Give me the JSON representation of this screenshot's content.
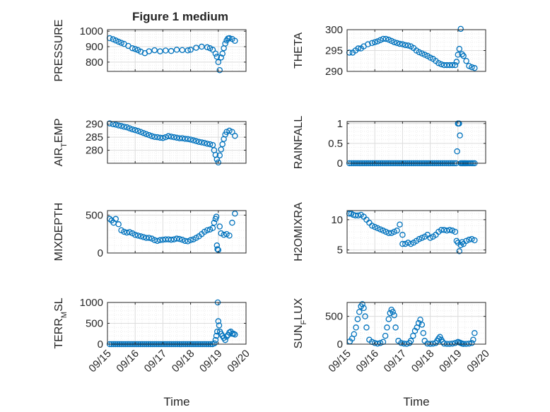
{
  "figure_title": "Figure 1 medium",
  "colors": {
    "marker": "#0072BD",
    "axes": "#262626",
    "grid": "#dcdcdc",
    "grid_minor": "#ececec"
  },
  "time_ticks": [
    "09/15",
    "09/16",
    "09/17",
    "09/18",
    "09/19",
    "09/20"
  ],
  "chart_data": [
    {
      "type": "scatter",
      "ylabel": "PRESSURE",
      "col": 0,
      "row": 0,
      "ylim": [
        740,
        1010
      ],
      "yticks": [
        800,
        900,
        1000
      ],
      "xlim": [
        0,
        5
      ],
      "xticks": [
        0,
        1,
        2,
        3,
        4,
        5
      ],
      "xtick_labels_shown": false,
      "xlabel": "",
      "title": "Figure 1 medium",
      "series": [
        {
          "x": [
            0.08,
            0.2,
            0.3,
            0.4,
            0.5,
            0.6,
            0.75,
            0.9,
            1.0,
            1.1,
            1.2,
            1.35,
            1.5,
            1.7,
            1.9,
            2.1,
            2.3,
            2.5,
            2.7,
            2.9,
            3.0,
            3.2,
            3.4,
            3.6,
            3.7,
            3.8,
            3.9,
            3.95,
            4.0,
            4.05,
            4.1,
            4.15,
            4.2,
            4.25,
            4.3,
            4.35,
            4.4,
            4.5,
            4.6
          ],
          "y": [
            955,
            948,
            940,
            932,
            925,
            918,
            905,
            890,
            885,
            878,
            868,
            858,
            870,
            877,
            870,
            875,
            872,
            880,
            878,
            876,
            880,
            893,
            900,
            896,
            890,
            880,
            855,
            835,
            800,
            748,
            830,
            855,
            890,
            920,
            940,
            953,
            955,
            950,
            938
          ]
        }
      ]
    },
    {
      "type": "scatter",
      "ylabel": "THETA",
      "col": 1,
      "row": 0,
      "ylim": [
        290,
        300
      ],
      "yticks": [
        290,
        295,
        300
      ],
      "xlim": [
        0,
        5
      ],
      "xticks": [
        0,
        1,
        2,
        3,
        4,
        5
      ],
      "xtick_labels_shown": false,
      "xlabel": "",
      "series": [
        {
          "x": [
            0.08,
            0.2,
            0.3,
            0.4,
            0.5,
            0.6,
            0.75,
            0.9,
            1.0,
            1.1,
            1.2,
            1.3,
            1.4,
            1.5,
            1.6,
            1.7,
            1.8,
            1.9,
            2.0,
            2.1,
            2.2,
            2.3,
            2.4,
            2.5,
            2.6,
            2.7,
            2.8,
            2.9,
            3.0,
            3.1,
            3.2,
            3.3,
            3.4,
            3.5,
            3.6,
            3.7,
            3.8,
            3.9,
            3.95,
            4.0,
            4.05,
            4.1,
            4.15,
            4.2,
            4.3,
            4.4,
            4.5,
            4.6
          ],
          "y": [
            294.5,
            294.5,
            295,
            295.5,
            295.5,
            296,
            296.5,
            296.8,
            297,
            297.2,
            297.5,
            297.8,
            297.8,
            297.6,
            297.3,
            297,
            296.8,
            296.6,
            296.5,
            296.3,
            296.2,
            296,
            295.6,
            295,
            294.6,
            294.3,
            294.0,
            293.7,
            293.3,
            293,
            292.5,
            292,
            291.7,
            291.5,
            291.5,
            291.5,
            291.5,
            291.5,
            292.3,
            294,
            295.4,
            300.2,
            294.1,
            293.7,
            292.5,
            291.3,
            291,
            290.8
          ]
        }
      ]
    },
    {
      "type": "scatter",
      "ylabel": "AIR_TEMP",
      "col": 0,
      "row": 1,
      "ylim": [
        275,
        291
      ],
      "yticks": [
        280,
        285,
        290
      ],
      "xlim": [
        0,
        5
      ],
      "xticks": [
        0,
        1,
        2,
        3,
        4,
        5
      ],
      "xtick_labels_shown": false,
      "xlabel": "",
      "series": [
        {
          "x": [
            0.08,
            0.2,
            0.3,
            0.4,
            0.5,
            0.6,
            0.7,
            0.8,
            0.9,
            1.0,
            1.1,
            1.2,
            1.3,
            1.4,
            1.5,
            1.6,
            1.7,
            1.8,
            1.9,
            2.0,
            2.1,
            2.2,
            2.3,
            2.4,
            2.5,
            2.6,
            2.7,
            2.8,
            2.9,
            3.0,
            3.1,
            3.2,
            3.3,
            3.4,
            3.5,
            3.6,
            3.7,
            3.8,
            3.85,
            3.9,
            3.95,
            4.0,
            4.05,
            4.1,
            4.15,
            4.2,
            4.25,
            4.3,
            4.4,
            4.5,
            4.6
          ],
          "y": [
            290.3,
            290,
            289.8,
            289.5,
            289.3,
            289,
            288.8,
            288.4,
            288,
            287.7,
            287.4,
            287,
            286.6,
            286.2,
            285.8,
            285.4,
            285.1,
            285,
            284.8,
            284.7,
            285,
            285.4,
            285.2,
            285,
            284.8,
            284.6,
            284.6,
            284.4,
            284.3,
            284.1,
            283.8,
            283.5,
            283.2,
            283,
            282.8,
            282.5,
            282.3,
            282,
            280,
            278.2,
            276.5,
            275.3,
            278,
            280.3,
            282.3,
            284.3,
            286,
            287,
            287.5,
            287,
            285.5
          ]
        }
      ]
    },
    {
      "type": "scatter",
      "ylabel": "RAINFALL",
      "col": 1,
      "row": 1,
      "ylim": [
        0,
        1.05
      ],
      "yticks": [
        0,
        0.5,
        1
      ],
      "xlim": [
        0,
        5
      ],
      "xticks": [
        0,
        1,
        2,
        3,
        4,
        5
      ],
      "xtick_labels_shown": false,
      "xlabel": "",
      "series": [
        {
          "x": [
            0.08,
            0.15,
            0.22,
            0.29,
            0.36,
            0.43,
            0.5,
            0.57,
            0.64,
            0.71,
            0.78,
            0.85,
            0.92,
            0.99,
            1.06,
            1.13,
            1.2,
            1.27,
            1.34,
            1.41,
            1.48,
            1.55,
            1.62,
            1.69,
            1.76,
            1.83,
            1.9,
            1.97,
            2.04,
            2.11,
            2.18,
            2.25,
            2.32,
            2.39,
            2.46,
            2.53,
            2.6,
            2.67,
            2.74,
            2.81,
            2.88,
            2.95,
            3.02,
            3.09,
            3.16,
            3.23,
            3.3,
            3.37,
            3.44,
            3.51,
            3.58,
            3.65,
            3.72,
            3.79,
            3.86,
            3.93,
            3.97,
            4.0,
            4.02,
            4.04,
            4.07,
            4.1,
            4.14,
            4.18,
            4.22,
            4.26,
            4.3,
            4.36,
            4.42,
            4.48,
            4.54,
            4.6
          ],
          "y": [
            0,
            0,
            0,
            0,
            0,
            0,
            0,
            0,
            0,
            0,
            0,
            0,
            0,
            0,
            0,
            0,
            0,
            0,
            0,
            0,
            0,
            0,
            0,
            0,
            0,
            0,
            0,
            0,
            0,
            0,
            0,
            0,
            0,
            0,
            0,
            0,
            0,
            0,
            0,
            0,
            0,
            0,
            0,
            0,
            0,
            0,
            0,
            0,
            0,
            0,
            0,
            0,
            0,
            0,
            0,
            0,
            0.3,
            1.0,
            1.0,
            1.0,
            0.7,
            0,
            0,
            0,
            0,
            0,
            0,
            0,
            0,
            0,
            0,
            0
          ]
        }
      ]
    },
    {
      "type": "scatter",
      "ylabel": "MIXDEPTH",
      "col": 0,
      "row": 2,
      "ylim": [
        0,
        560
      ],
      "yticks": [
        0,
        500
      ],
      "xlim": [
        0,
        5
      ],
      "xticks": [
        0,
        1,
        2,
        3,
        4,
        5
      ],
      "xtick_labels_shown": false,
      "xlabel": "",
      "series": [
        {
          "x": [
            0.08,
            0.15,
            0.22,
            0.3,
            0.4,
            0.5,
            0.6,
            0.7,
            0.8,
            0.9,
            1.0,
            1.1,
            1.2,
            1.3,
            1.4,
            1.5,
            1.6,
            1.7,
            1.8,
            1.9,
            2.0,
            2.1,
            2.2,
            2.3,
            2.4,
            2.5,
            2.6,
            2.7,
            2.8,
            2.9,
            3.0,
            3.1,
            3.2,
            3.3,
            3.4,
            3.5,
            3.6,
            3.7,
            3.8,
            3.85,
            3.9,
            3.93,
            3.95,
            3.97,
            4.0,
            4.05,
            4.1,
            4.2,
            4.3,
            4.4,
            4.5,
            4.6
          ],
          "y": [
            450,
            430,
            400,
            450,
            380,
            300,
            280,
            270,
            275,
            260,
            240,
            230,
            220,
            210,
            200,
            200,
            190,
            170,
            160,
            170,
            175,
            180,
            180,
            175,
            180,
            190,
            185,
            175,
            160,
            155,
            170,
            180,
            200,
            220,
            250,
            280,
            300,
            310,
            330,
            400,
            450,
            480,
            100,
            50,
            40,
            350,
            260,
            240,
            250,
            230,
            400,
            520
          ]
        }
      ]
    },
    {
      "type": "scatter",
      "ylabel": "H2OMIXRA",
      "col": 1,
      "row": 2,
      "ylim": [
        4.5,
        11.5
      ],
      "yticks": [
        5,
        10
      ],
      "xlim": [
        0,
        5
      ],
      "xticks": [
        0,
        1,
        2,
        3,
        4,
        5
      ],
      "xtick_labels_shown": false,
      "xlabel": "",
      "series": [
        {
          "x": [
            0.08,
            0.15,
            0.22,
            0.3,
            0.4,
            0.5,
            0.6,
            0.7,
            0.8,
            0.9,
            1.0,
            1.1,
            1.2,
            1.3,
            1.4,
            1.5,
            1.6,
            1.7,
            1.8,
            1.9,
            2.0,
            2.0,
            2.1,
            2.2,
            2.3,
            2.4,
            2.5,
            2.6,
            2.7,
            2.8,
            2.9,
            3.0,
            3.1,
            3.2,
            3.3,
            3.4,
            3.5,
            3.6,
            3.7,
            3.8,
            3.9,
            3.95,
            4.0,
            4.05,
            4.1,
            4.15,
            4.2,
            4.3,
            4.4,
            4.5,
            4.6
          ],
          "y": [
            11,
            11,
            10.8,
            10.7,
            10.7,
            10.8,
            10.5,
            10,
            9.5,
            9.0,
            8.8,
            8.6,
            8.4,
            8.2,
            8.0,
            7.8,
            7.8,
            8.0,
            8.2,
            9.2,
            6.0,
            7.5,
            6.0,
            6.2,
            6.0,
            6.2,
            6.5,
            6.8,
            7.0,
            7.2,
            7.5,
            7.0,
            7.2,
            7.5,
            8.0,
            8.3,
            8.3,
            8.2,
            8.3,
            8.2,
            8.0,
            6.5,
            6.2,
            4.8,
            5.8,
            6.3,
            6.0,
            6.5,
            6.7,
            6.8,
            6.6
          ]
        }
      ]
    },
    {
      "type": "scatter",
      "ylabel": "TERR_MSL",
      "col": 0,
      "row": 3,
      "ylim": [
        0,
        1000
      ],
      "yticks": [
        0,
        500,
        1000
      ],
      "xlim": [
        0,
        5
      ],
      "xticks": [
        0,
        1,
        2,
        3,
        4,
        5
      ],
      "xtick_labels_shown": true,
      "xlabel": "Time",
      "series": [
        {
          "x": [
            0.08,
            0.15,
            0.22,
            0.29,
            0.36,
            0.43,
            0.5,
            0.57,
            0.64,
            0.71,
            0.78,
            0.85,
            0.92,
            0.99,
            1.06,
            1.13,
            1.2,
            1.27,
            1.34,
            1.41,
            1.48,
            1.55,
            1.62,
            1.69,
            1.76,
            1.83,
            1.9,
            1.97,
            2.04,
            2.11,
            2.18,
            2.25,
            2.32,
            2.39,
            2.46,
            2.53,
            2.6,
            2.67,
            2.74,
            2.81,
            2.88,
            2.95,
            3.02,
            3.09,
            3.16,
            3.23,
            3.3,
            3.37,
            3.44,
            3.51,
            3.58,
            3.65,
            3.72,
            3.79,
            3.86,
            3.9,
            3.93,
            3.96,
            3.98,
            4.0,
            4.03,
            4.06,
            4.1,
            4.15,
            4.2,
            4.25,
            4.3,
            4.35,
            4.4,
            4.45,
            4.5,
            4.55,
            4.6
          ],
          "y": [
            0,
            0,
            0,
            0,
            0,
            0,
            0,
            0,
            0,
            0,
            0,
            0,
            0,
            0,
            0,
            0,
            0,
            0,
            0,
            0,
            0,
            0,
            0,
            0,
            0,
            0,
            0,
            0,
            0,
            0,
            0,
            0,
            0,
            0,
            0,
            0,
            0,
            0,
            0,
            0,
            0,
            0,
            0,
            0,
            0,
            0,
            0,
            0,
            0,
            0,
            0,
            0,
            0,
            0,
            20,
            100,
            200,
            300,
            1000,
            550,
            450,
            300,
            250,
            200,
            150,
            100,
            180,
            220,
            280,
            300,
            250,
            250,
            230
          ]
        }
      ]
    },
    {
      "type": "scatter",
      "ylabel": "SUN_FLUX",
      "col": 1,
      "row": 3,
      "ylim": [
        0,
        750
      ],
      "yticks": [
        0,
        500
      ],
      "xlim": [
        0,
        5
      ],
      "xticks": [
        0,
        1,
        2,
        3,
        4,
        5
      ],
      "xtick_labels_shown": true,
      "xlabel": "Time",
      "series": [
        {
          "x": [
            0.1,
            0.18,
            0.25,
            0.32,
            0.38,
            0.44,
            0.5,
            0.55,
            0.6,
            0.65,
            0.7,
            0.8,
            0.9,
            1.0,
            1.1,
            1.2,
            1.3,
            1.38,
            1.44,
            1.5,
            1.55,
            1.6,
            1.65,
            1.7,
            1.75,
            1.85,
            1.95,
            2.05,
            2.15,
            2.25,
            2.3,
            2.38,
            2.45,
            2.52,
            2.58,
            2.64,
            2.7,
            2.75,
            2.8,
            2.9,
            3.0,
            3.1,
            3.2,
            3.25,
            3.3,
            3.35,
            3.4,
            3.45,
            3.5,
            3.6,
            3.7,
            3.8,
            3.9,
            4.0,
            4.05,
            4.1,
            4.15,
            4.2,
            4.3,
            4.4,
            4.5,
            4.55,
            4.6
          ],
          "y": [
            50,
            100,
            180,
            300,
            450,
            580,
            680,
            720,
            650,
            500,
            300,
            80,
            40,
            20,
            10,
            20,
            40,
            150,
            300,
            450,
            560,
            620,
            580,
            520,
            300,
            60,
            20,
            10,
            5,
            20,
            60,
            150,
            240,
            300,
            380,
            440,
            350,
            200,
            60,
            10,
            5,
            10,
            20,
            60,
            100,
            130,
            80,
            40,
            10,
            5,
            5,
            10,
            20,
            40,
            30,
            20,
            10,
            5,
            5,
            10,
            20,
            80,
            200
          ]
        }
      ]
    }
  ]
}
